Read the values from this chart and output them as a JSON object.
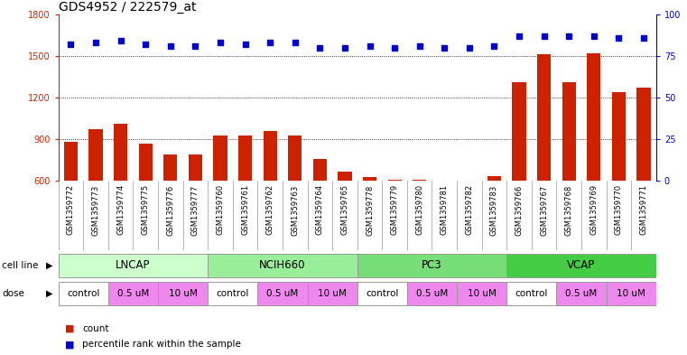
{
  "title": "GDS4952 / 222579_at",
  "samples": [
    "GSM1359772",
    "GSM1359773",
    "GSM1359774",
    "GSM1359775",
    "GSM1359776",
    "GSM1359777",
    "GSM1359760",
    "GSM1359761",
    "GSM1359762",
    "GSM1359763",
    "GSM1359764",
    "GSM1359765",
    "GSM1359778",
    "GSM1359779",
    "GSM1359780",
    "GSM1359781",
    "GSM1359782",
    "GSM1359783",
    "GSM1359766",
    "GSM1359767",
    "GSM1359768",
    "GSM1359769",
    "GSM1359770",
    "GSM1359771"
  ],
  "counts": [
    880,
    970,
    1010,
    870,
    790,
    790,
    930,
    930,
    960,
    930,
    760,
    670,
    630,
    610,
    610,
    600,
    595,
    635,
    1310,
    1510,
    1310,
    1520,
    1240,
    1270
  ],
  "percentile_ranks_pct": [
    82,
    83,
    84,
    82,
    81,
    81,
    83,
    82,
    83,
    83,
    80,
    80,
    81,
    80,
    81,
    80,
    80,
    81,
    87,
    87,
    87,
    87,
    86,
    86
  ],
  "cell_lines": [
    {
      "label": "LNCAP",
      "start": 0,
      "end": 6,
      "color": "#ccffcc"
    },
    {
      "label": "NCIH660",
      "start": 6,
      "end": 12,
      "color": "#99ee99"
    },
    {
      "label": "PC3",
      "start": 12,
      "end": 18,
      "color": "#77dd77"
    },
    {
      "label": "VCAP",
      "start": 18,
      "end": 24,
      "color": "#44cc44"
    }
  ],
  "doses": [
    {
      "label": "control",
      "start": 0,
      "end": 2,
      "is_control": true
    },
    {
      "label": "0.5 uM",
      "start": 2,
      "end": 4,
      "is_control": false
    },
    {
      "label": "10 uM",
      "start": 4,
      "end": 6,
      "is_control": false
    },
    {
      "label": "control",
      "start": 6,
      "end": 8,
      "is_control": true
    },
    {
      "label": "0.5 uM",
      "start": 8,
      "end": 10,
      "is_control": false
    },
    {
      "label": "10 uM",
      "start": 10,
      "end": 12,
      "is_control": false
    },
    {
      "label": "control",
      "start": 12,
      "end": 14,
      "is_control": true
    },
    {
      "label": "0.5 uM",
      "start": 14,
      "end": 16,
      "is_control": false
    },
    {
      "label": "10 uM",
      "start": 16,
      "end": 18,
      "is_control": false
    },
    {
      "label": "control",
      "start": 18,
      "end": 20,
      "is_control": true
    },
    {
      "label": "0.5 uM",
      "start": 20,
      "end": 22,
      "is_control": false
    },
    {
      "label": "10 uM",
      "start": 22,
      "end": 24,
      "is_control": false
    }
  ],
  "bar_color": "#cc2200",
  "dot_color": "#0000cc",
  "ylim_left": [
    600,
    1800
  ],
  "ylim_right": [
    0,
    100
  ],
  "yticks_left": [
    600,
    900,
    1200,
    1500,
    1800
  ],
  "yticks_right": [
    0,
    25,
    50,
    75,
    100
  ],
  "grid_values": [
    900,
    1200,
    1500
  ],
  "dose_color_on": "#ee88ee",
  "dose_color_off": "white",
  "sample_bg_color": "#dddddd",
  "border_color": "#999999"
}
